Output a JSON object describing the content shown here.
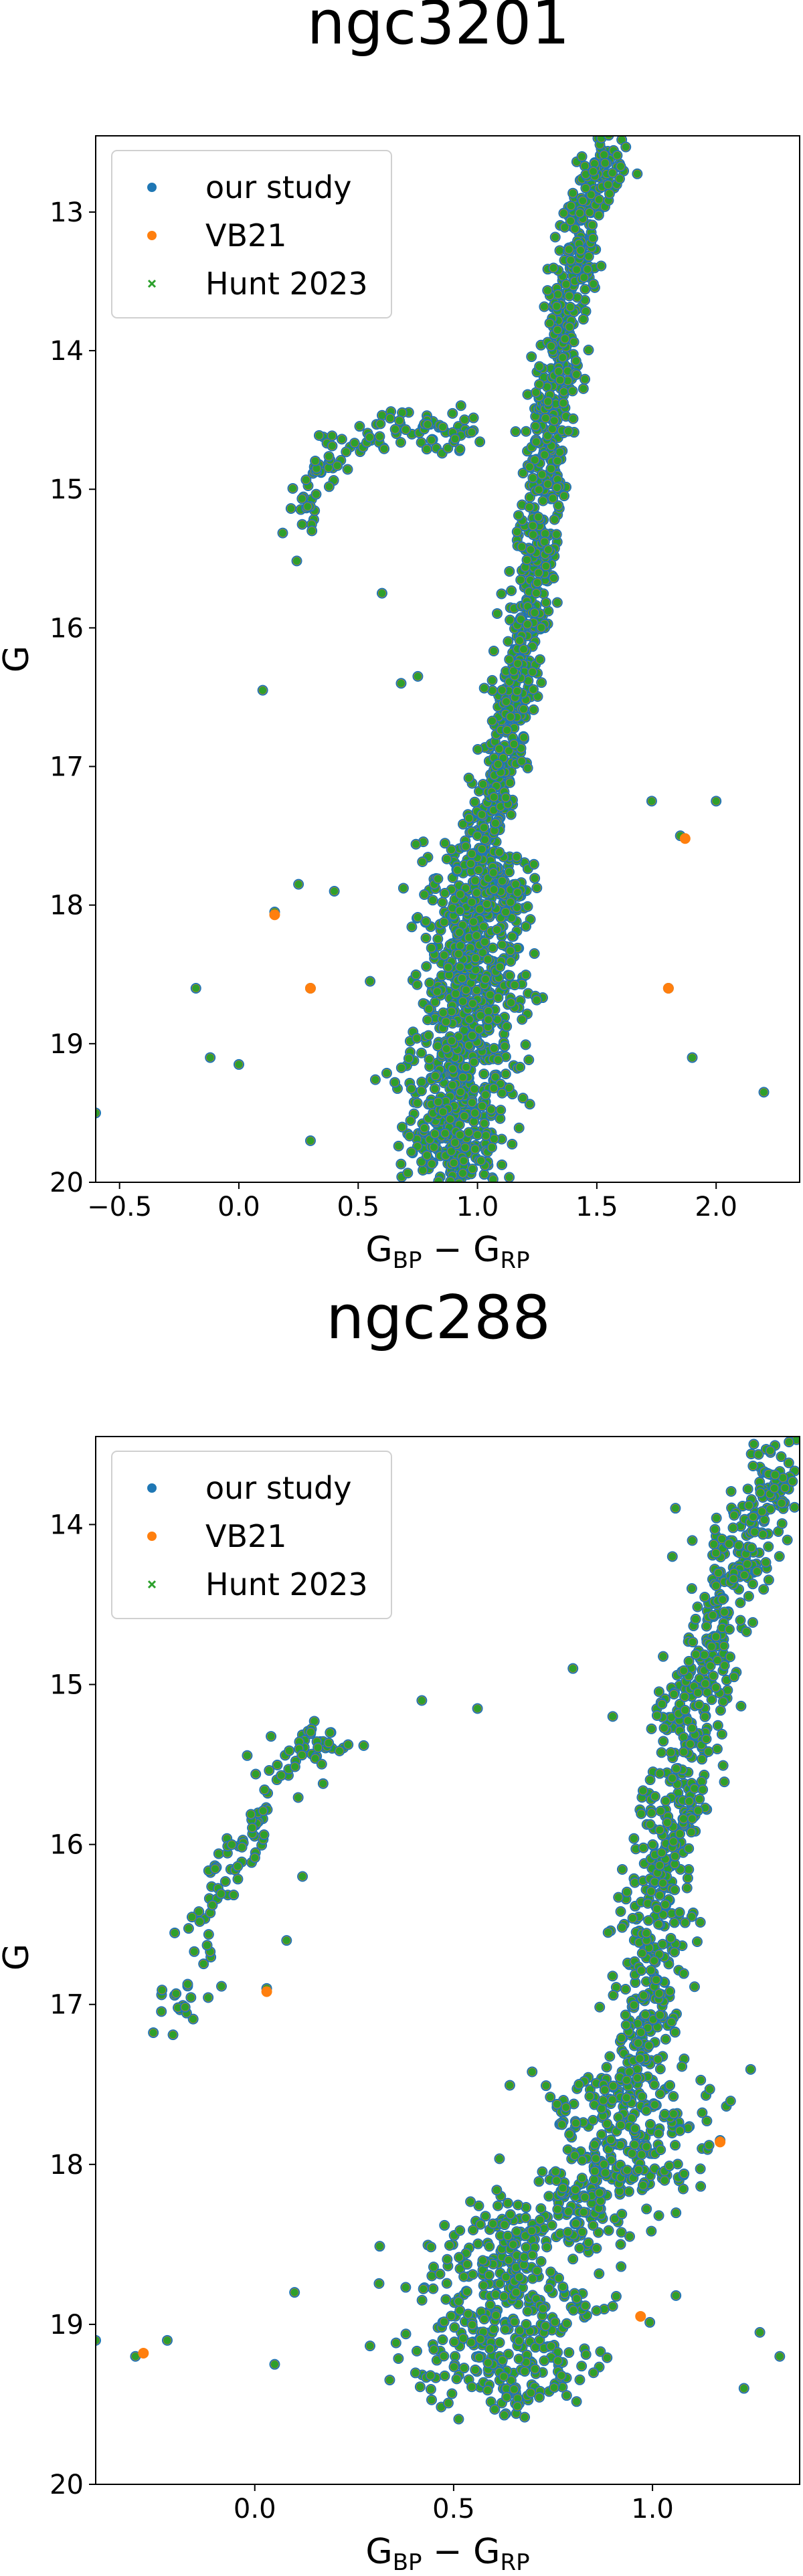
{
  "chart_data": [
    {
      "type": "scatter",
      "title": "ngc3201",
      "xlabel": "G_BP − G_RP",
      "ylabel": "G",
      "xlim": [
        -0.6,
        2.35
      ],
      "ylim": [
        20.0,
        12.45
      ],
      "y_inverted": true,
      "xticks": [
        -0.5,
        0.0,
        0.5,
        1.0,
        1.5,
        2.0
      ],
      "xtick_labels": [
        "−0.5",
        "0.0",
        "0.5",
        "1.0",
        "1.5",
        "2.0"
      ],
      "yticks": [
        13,
        14,
        15,
        16,
        17,
        18,
        19,
        20
      ],
      "ytick_labels": [
        "13",
        "14",
        "15",
        "16",
        "17",
        "18",
        "19",
        "20"
      ],
      "legend_position": "top-left",
      "series": [
        {
          "name": "our study",
          "color": "#1f77b4",
          "marker": "circle"
        },
        {
          "name": "VB21",
          "color": "#ff7f0e",
          "marker": "circle"
        },
        {
          "name": "Hunt 2023",
          "color": "#2ca02c",
          "marker": "x"
        }
      ],
      "features": {
        "main_sequence": [
          [
            0.9,
            20.0
          ],
          [
            0.92,
            19.5
          ],
          [
            0.95,
            19.0
          ],
          [
            0.98,
            18.5
          ],
          [
            1.0,
            18.0
          ],
          [
            1.02,
            17.6
          ],
          [
            1.05,
            17.3
          ],
          [
            1.1,
            17.0
          ],
          [
            1.15,
            16.6
          ],
          [
            1.2,
            16.0
          ],
          [
            1.25,
            15.5
          ],
          [
            1.28,
            15.0
          ],
          [
            1.3,
            14.6
          ],
          [
            1.35,
            14.0
          ],
          [
            1.4,
            13.5
          ],
          [
            1.45,
            13.0
          ],
          [
            1.55,
            12.5
          ]
        ],
        "horizontal_branch": [
          [
            0.25,
            15.3
          ],
          [
            0.3,
            15.0
          ],
          [
            0.35,
            14.8
          ],
          [
            0.45,
            14.7
          ],
          [
            0.55,
            14.6
          ],
          [
            0.7,
            14.55
          ],
          [
            0.8,
            14.6
          ],
          [
            0.9,
            14.6
          ],
          [
            1.0,
            14.5
          ]
        ],
        "isolated_points": [
          [
            -0.6,
            19.5
          ],
          [
            -0.18,
            18.6
          ],
          [
            -0.12,
            19.1
          ],
          [
            0.0,
            19.15
          ],
          [
            0.1,
            16.45
          ],
          [
            0.15,
            18.05
          ],
          [
            0.25,
            17.85
          ],
          [
            0.3,
            18.6
          ],
          [
            0.3,
            19.7
          ],
          [
            0.4,
            17.9
          ],
          [
            0.55,
            18.55
          ],
          [
            0.6,
            15.75
          ],
          [
            0.68,
            16.4
          ],
          [
            0.75,
            16.35
          ],
          [
            1.73,
            17.25
          ],
          [
            1.8,
            18.6
          ],
          [
            1.85,
            17.5
          ],
          [
            1.9,
            19.1
          ],
          [
            2.0,
            17.25
          ],
          [
            2.2,
            19.35
          ]
        ],
        "distinct_vb21_points": [
          [
            0.15,
            18.07
          ],
          [
            0.3,
            18.6
          ],
          [
            1.8,
            18.6
          ],
          [
            1.87,
            17.52
          ]
        ]
      }
    },
    {
      "type": "scatter",
      "title": "ngc288",
      "xlabel": "G_BP − G_RP",
      "ylabel": "G",
      "xlim": [
        -0.4,
        1.37
      ],
      "ylim": [
        20.0,
        13.45
      ],
      "y_inverted": true,
      "xticks": [
        0.0,
        0.5,
        1.0
      ],
      "xtick_labels": [
        "0.0",
        "0.5",
        "1.0"
      ],
      "yticks": [
        14,
        15,
        16,
        17,
        18,
        19,
        20
      ],
      "ytick_labels": [
        "14",
        "15",
        "16",
        "17",
        "18",
        "19",
        "20"
      ],
      "legend_position": "top-left",
      "series": [
        {
          "name": "our study",
          "color": "#1f77b4",
          "marker": "circle"
        },
        {
          "name": "VB21",
          "color": "#ff7f0e",
          "marker": "circle"
        },
        {
          "name": "Hunt 2023",
          "color": "#2ca02c",
          "marker": "x"
        }
      ],
      "features": {
        "main_sequence": [
          [
            0.62,
            19.5
          ],
          [
            0.63,
            19.0
          ],
          [
            0.65,
            18.6
          ],
          [
            0.7,
            18.4
          ],
          [
            0.8,
            18.25
          ],
          [
            0.9,
            18.1
          ],
          [
            0.95,
            17.5
          ],
          [
            0.98,
            17.0
          ],
          [
            1.0,
            16.5
          ],
          [
            1.03,
            16.0
          ],
          [
            1.08,
            15.5
          ],
          [
            1.12,
            15.0
          ],
          [
            1.18,
            14.5
          ],
          [
            1.25,
            14.0
          ],
          [
            1.33,
            13.5
          ]
        ],
        "horizontal_branch": [
          [
            -0.2,
            17.1
          ],
          [
            -0.15,
            16.9
          ],
          [
            -0.12,
            16.5
          ],
          [
            -0.08,
            16.2
          ],
          [
            -0.03,
            16.0
          ],
          [
            0.0,
            15.85
          ],
          [
            0.05,
            15.6
          ],
          [
            0.1,
            15.45
          ],
          [
            0.15,
            15.35
          ],
          [
            0.22,
            15.3
          ]
        ],
        "isolated_points": [
          [
            -0.4,
            19.1
          ],
          [
            -0.3,
            19.2
          ],
          [
            -0.22,
            19.1
          ],
          [
            0.03,
            16.9
          ],
          [
            0.05,
            19.25
          ],
          [
            0.08,
            16.6
          ],
          [
            0.1,
            18.8
          ],
          [
            0.12,
            16.2
          ],
          [
            0.42,
            15.1
          ],
          [
            0.56,
            15.15
          ],
          [
            0.8,
            14.9
          ],
          [
            0.9,
            15.2
          ],
          [
            0.92,
            18.5
          ],
          [
            1.05,
            14.2
          ],
          [
            1.1,
            14.1
          ],
          [
            1.17,
            17.85
          ],
          [
            1.23,
            19.4
          ],
          [
            1.27,
            19.05
          ],
          [
            1.32,
            19.2
          ]
        ],
        "distinct_vb21_points": [
          [
            -0.28,
            19.18
          ],
          [
            0.03,
            16.92
          ],
          [
            1.17,
            17.86
          ],
          [
            0.97,
            18.95
          ]
        ]
      }
    }
  ]
}
